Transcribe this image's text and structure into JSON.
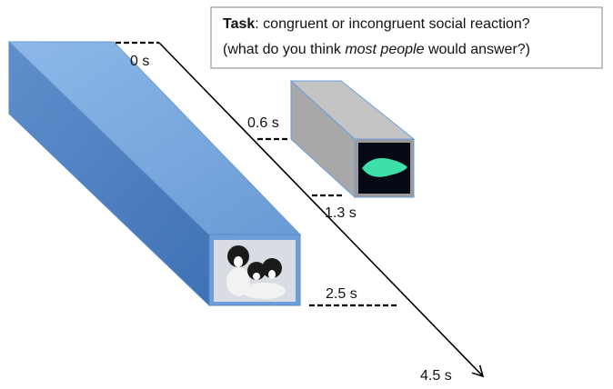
{
  "task": {
    "label": "Task",
    "question": ": congruent or incongruent social reaction?",
    "hint_start": "(what do you think",
    "hint_emphasis": "most people",
    "hint_end": "would answer?)"
  },
  "timeline": {
    "start": "0 s",
    "sound_onset": "0.6 s",
    "sound_offset": "1.3 s",
    "image_offset": "2.5 s",
    "end": "4.5 s"
  }
}
